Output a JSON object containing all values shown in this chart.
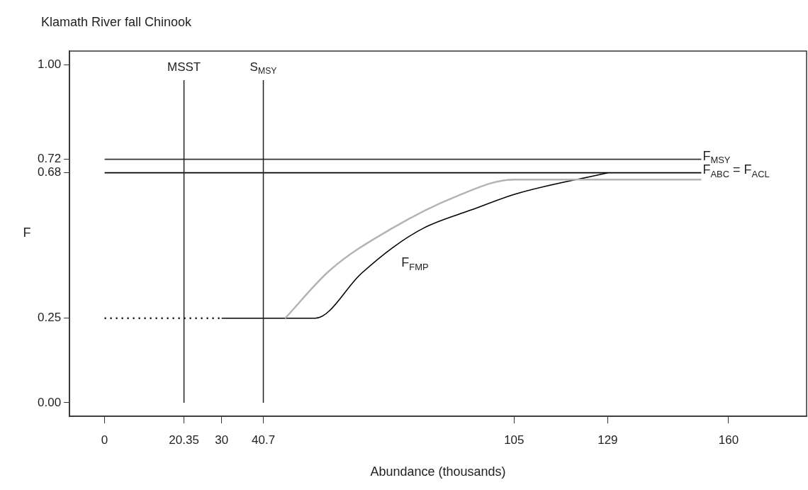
{
  "chart_data": {
    "type": "line",
    "title": "Klamath River fall Chinook",
    "xlabel": "Abundance (thousands)",
    "ylabel": "F",
    "xlim": [
      -9,
      180
    ],
    "ylim": [
      -0.04,
      1.04
    ],
    "xticks": [
      0,
      {
        "value": 20.35,
        "label": "20.35"
      },
      30,
      {
        "value": 40.7,
        "label": "40.7"
      },
      105,
      129,
      160
    ],
    "yticks": [
      {
        "value": 0,
        "label": "0.00"
      },
      0.25,
      0.68,
      0.72,
      {
        "value": 1,
        "label": "1.00"
      }
    ],
    "grid": false,
    "legend": false,
    "marker": "none",
    "series": [
      {
        "name": "F$_{MSY}$",
        "color": "#333333",
        "x": [
          0,
          153
        ],
        "values": [
          0.72,
          0.72
        ]
      },
      {
        "name": "F$_{ABC}$ = F$_{ACL}$",
        "color": "#000000",
        "x": [
          0,
          153
        ],
        "values": [
          0.68,
          0.68
        ]
      },
      {
        "color": "#b3b3b3",
        "x": [
          46.3,
          57.8,
          73.9,
          89.9,
          105,
          153
        ],
        "values": [
          0.25,
          0.392,
          0.517,
          0.609,
          0.66,
          0.66
        ]
      },
      {
        "color": "#000000",
        "line_style": "dotted",
        "x": [
          0,
          30
        ],
        "values": [
          0.25,
          0.25
        ]
      },
      {
        "name": "F$_{FMP}$",
        "color": "#000000",
        "x": [
          30,
          54,
          65.8,
          73.9,
          81.9,
          94,
          105.9,
          129
        ],
        "values": [
          0.25,
          0.25,
          0.382,
          0.459,
          0.517,
          0.57,
          0.619,
          0.68
        ]
      }
    ],
    "ref_lines": [
      {
        "axis": "x",
        "value": 20.35,
        "label": "MSST"
      },
      {
        "axis": "x",
        "value": 40.7,
        "label": "S$_{MSY}$"
      }
    ]
  }
}
